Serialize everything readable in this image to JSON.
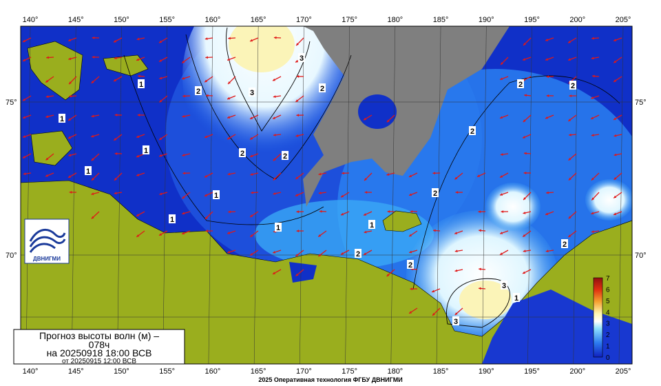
{
  "map": {
    "lon_labels": [
      "140°",
      "145°",
      "150°",
      "155°",
      "160°",
      "165°",
      "170°",
      "175°",
      "180°",
      "185°",
      "190°",
      "195°",
      "200°",
      "205°"
    ],
    "lat_labels": [
      "75°",
      "70°"
    ],
    "contour_labels": [
      "1",
      "2",
      "3"
    ],
    "colorbar_ticks": [
      0,
      1,
      2,
      3,
      4,
      5,
      6,
      7
    ],
    "logo": "ДВНИГМИ",
    "legend": {
      "line1": "Прогноз высоты волн (м) –",
      "line2": "078ч",
      "line3": "на 20250918 18:00 ВСВ",
      "line4": "от 20250915 12:00 ВСВ"
    },
    "footer": "2025 Оперативная технология ФГБУ ДВНИГМИ"
  }
}
